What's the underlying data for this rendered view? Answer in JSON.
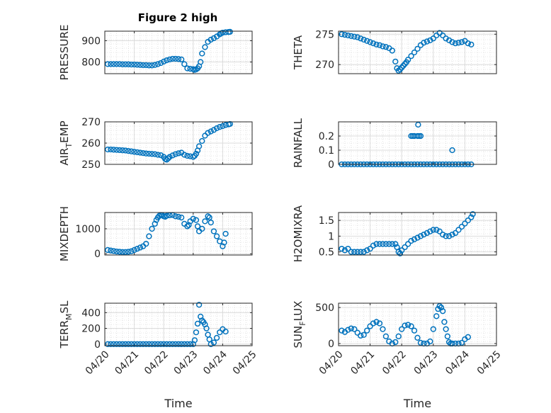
{
  "figure_title": "Figure 2 high",
  "chart_data": [
    {
      "type": "scatter",
      "ylabel": "PRESSURE",
      "ylim": [
        745,
        945
      ],
      "yticks": [
        "800",
        "900"
      ],
      "xlim": [
        0,
        5
      ],
      "xticks": [],
      "xlabel": "",
      "marker": "circle",
      "color": "#0072BD",
      "grid": true,
      "series": [
        {
          "x": [
            0.1,
            0.2,
            0.3,
            0.4,
            0.5,
            0.6,
            0.7,
            0.8,
            0.9,
            1.0,
            1.1,
            1.2,
            1.3,
            1.4,
            1.5,
            1.6,
            1.7,
            1.8,
            1.9,
            2.0,
            2.1,
            2.2,
            2.3,
            2.4,
            2.5,
            2.6,
            2.7,
            2.8,
            2.9,
            3.0,
            3.05,
            3.1,
            3.15,
            3.2,
            3.25,
            3.3,
            3.4,
            3.5,
            3.6,
            3.7,
            3.8,
            3.9,
            3.95,
            4.0,
            4.1,
            4.2,
            4.25
          ],
          "y": [
            790,
            790,
            790,
            790,
            790,
            789,
            789,
            789,
            788,
            788,
            787,
            786,
            785,
            785,
            784,
            784,
            786,
            790,
            795,
            802,
            808,
            812,
            815,
            815,
            814,
            812,
            790,
            770,
            768,
            766,
            763,
            765,
            770,
            780,
            800,
            840,
            870,
            895,
            905,
            912,
            920,
            930,
            935,
            938,
            940,
            941,
            942
          ]
        }
      ]
    },
    {
      "type": "scatter",
      "ylabel": "THETA",
      "ylim": [
        268.5,
        275.5
      ],
      "yticks": [
        "270",
        "275"
      ],
      "xlim": [
        0,
        5
      ],
      "xticks": [],
      "xlabel": "",
      "marker": "circle",
      "color": "#0072BD",
      "grid": true,
      "series": [
        {
          "x": [
            0.1,
            0.2,
            0.3,
            0.4,
            0.5,
            0.6,
            0.7,
            0.8,
            0.9,
            1.0,
            1.1,
            1.2,
            1.3,
            1.4,
            1.5,
            1.6,
            1.7,
            1.8,
            1.85,
            1.9,
            1.95,
            2.0,
            2.05,
            2.1,
            2.15,
            2.2,
            2.3,
            2.4,
            2.5,
            2.6,
            2.7,
            2.8,
            2.9,
            3.0,
            3.1,
            3.2,
            3.3,
            3.4,
            3.5,
            3.6,
            3.7,
            3.8,
            3.9,
            4.0,
            4.1,
            4.2
          ],
          "y": [
            275,
            274.9,
            274.8,
            274.7,
            274.6,
            274.5,
            274.3,
            274.1,
            273.9,
            273.7,
            273.5,
            273.3,
            273.2,
            273.0,
            272.9,
            272.7,
            272.3,
            270.5,
            269.4,
            269.0,
            269.2,
            269.5,
            269.8,
            270.1,
            270.4,
            270.8,
            271.4,
            272.0,
            272.6,
            273.2,
            273.6,
            273.8,
            274.0,
            274.3,
            274.8,
            275.2,
            274.8,
            274.3,
            274.0,
            273.7,
            273.5,
            273.6,
            273.7,
            273.9,
            273.5,
            273.3
          ]
        }
      ]
    },
    {
      "type": "scatter",
      "ylabel": "AIR_TEMP",
      "ylim": [
        250,
        270
      ],
      "yticks": [
        "250",
        "260",
        "270"
      ],
      "xlim": [
        0,
        5
      ],
      "xticks": [],
      "xlabel": "",
      "marker": "circle",
      "color": "#0072BD",
      "grid": true,
      "series": [
        {
          "x": [
            0.1,
            0.2,
            0.3,
            0.4,
            0.5,
            0.6,
            0.7,
            0.8,
            0.9,
            1.0,
            1.1,
            1.2,
            1.3,
            1.4,
            1.5,
            1.6,
            1.7,
            1.8,
            1.9,
            2.0,
            2.05,
            2.1,
            2.15,
            2.2,
            2.3,
            2.4,
            2.5,
            2.6,
            2.7,
            2.8,
            2.9,
            3.0,
            3.05,
            3.1,
            3.15,
            3.2,
            3.3,
            3.4,
            3.5,
            3.6,
            3.7,
            3.8,
            3.9,
            4.0,
            4.1,
            4.2,
            4.25
          ],
          "y": [
            257,
            257,
            256.9,
            256.8,
            256.7,
            256.6,
            256.5,
            256.3,
            256.1,
            255.9,
            255.7,
            255.5,
            255.3,
            255.1,
            255.0,
            254.9,
            254.8,
            254.5,
            254.3,
            253.5,
            252.5,
            252.2,
            252.8,
            253.5,
            254.2,
            254.8,
            255.2,
            255.5,
            254.5,
            254.0,
            253.8,
            253.5,
            254.0,
            255.0,
            256.5,
            258.5,
            261.0,
            263.5,
            264.8,
            265.5,
            266.2,
            267.0,
            267.6,
            268.0,
            268.5,
            268.8,
            269.0
          ]
        }
      ]
    },
    {
      "type": "scatter",
      "ylabel": "RAINFALL",
      "ylim": [
        0,
        0.3
      ],
      "yticks": [
        "0",
        "0.1",
        "0.2"
      ],
      "xlim": [
        0,
        5
      ],
      "xticks": [],
      "xlabel": "",
      "marker": "circle",
      "color": "#0072BD",
      "grid": true,
      "series": [
        {
          "x": [
            0.1,
            0.2,
            0.3,
            0.4,
            0.5,
            0.6,
            0.7,
            0.8,
            0.9,
            1.0,
            1.1,
            1.2,
            1.3,
            1.4,
            1.5,
            1.6,
            1.7,
            1.8,
            1.9,
            2.0,
            2.1,
            2.2,
            2.3,
            2.4,
            2.5,
            2.6,
            2.7,
            2.8,
            2.9,
            3.0,
            3.1,
            3.2,
            3.3,
            3.4,
            3.5,
            3.6,
            3.7,
            3.8,
            3.9,
            4.0,
            4.1,
            4.2,
            2.3,
            2.35,
            2.4,
            2.5,
            2.55,
            2.6,
            2.52,
            3.6
          ],
          "y": [
            0,
            0,
            0,
            0,
            0,
            0,
            0,
            0,
            0,
            0,
            0,
            0,
            0,
            0,
            0,
            0,
            0,
            0,
            0,
            0,
            0,
            0,
            0,
            0,
            0,
            0,
            0,
            0,
            0,
            0,
            0,
            0,
            0,
            0,
            0,
            0,
            0,
            0,
            0,
            0,
            0,
            0,
            0.2,
            0.2,
            0.2,
            0.2,
            0.2,
            0.2,
            0.28,
            0.1
          ]
        }
      ]
    },
    {
      "type": "scatter",
      "ylabel": "MIXDEPTH",
      "ylim": [
        -50,
        1650
      ],
      "yticks": [
        "0",
        "1000"
      ],
      "xlim": [
        0,
        5
      ],
      "xticks": [],
      "xlabel": "",
      "marker": "circle",
      "color": "#0072BD",
      "grid": true,
      "series": [
        {
          "x": [
            0.1,
            0.2,
            0.3,
            0.4,
            0.5,
            0.6,
            0.7,
            0.8,
            0.9,
            1.0,
            1.1,
            1.2,
            1.3,
            1.4,
            1.5,
            1.6,
            1.7,
            1.75,
            1.8,
            1.85,
            1.9,
            1.95,
            2.0,
            2.05,
            2.1,
            2.2,
            2.3,
            2.4,
            2.5,
            2.6,
            2.7,
            2.8,
            2.85,
            2.9,
            3.0,
            3.1,
            3.15,
            3.2,
            3.3,
            3.4,
            3.5,
            3.55,
            3.6,
            3.7,
            3.8,
            3.9,
            4.0,
            4.05,
            4.1
          ],
          "y": [
            150,
            130,
            110,
            90,
            80,
            70,
            70,
            80,
            100,
            150,
            200,
            250,
            300,
            400,
            700,
            1000,
            1200,
            1350,
            1450,
            1520,
            1550,
            1540,
            1500,
            1480,
            1520,
            1540,
            1550,
            1500,
            1480,
            1450,
            1200,
            1100,
            1150,
            1300,
            1400,
            1350,
            1100,
            900,
            1000,
            1300,
            1500,
            1450,
            1250,
            900,
            700,
            500,
            300,
            450,
            800
          ]
        }
      ]
    },
    {
      "type": "scatter",
      "ylabel": "H2OMIXRA",
      "ylim": [
        0.4,
        1.75
      ],
      "yticks": [
        "0.5",
        "1",
        "1.5"
      ],
      "xlim": [
        0,
        5
      ],
      "xticks": [],
      "xlabel": "",
      "marker": "circle",
      "color": "#0072BD",
      "grid": true,
      "series": [
        {
          "x": [
            0.1,
            0.2,
            0.3,
            0.4,
            0.5,
            0.6,
            0.7,
            0.8,
            0.9,
            1.0,
            1.1,
            1.2,
            1.3,
            1.4,
            1.5,
            1.6,
            1.7,
            1.8,
            1.85,
            1.9,
            1.95,
            2.0,
            2.1,
            2.2,
            2.3,
            2.4,
            2.5,
            2.6,
            2.7,
            2.8,
            2.9,
            3.0,
            3.1,
            3.2,
            3.3,
            3.4,
            3.5,
            3.6,
            3.7,
            3.8,
            3.9,
            4.0,
            4.1,
            4.2,
            4.25
          ],
          "y": [
            0.6,
            0.55,
            0.6,
            0.5,
            0.5,
            0.5,
            0.5,
            0.5,
            0.55,
            0.6,
            0.7,
            0.75,
            0.75,
            0.75,
            0.75,
            0.75,
            0.75,
            0.75,
            0.65,
            0.5,
            0.45,
            0.55,
            0.65,
            0.75,
            0.85,
            0.9,
            0.95,
            1.0,
            1.05,
            1.1,
            1.15,
            1.2,
            1.2,
            1.15,
            1.05,
            1.0,
            1.0,
            1.05,
            1.1,
            1.2,
            1.3,
            1.4,
            1.5,
            1.6,
            1.7
          ]
        }
      ]
    },
    {
      "type": "scatter",
      "ylabel": "TERR_MSL",
      "ylim": [
        -20,
        520
      ],
      "yticks": [
        "0",
        "200",
        "400"
      ],
      "xlim": [
        0,
        5
      ],
      "xticks": [
        "04/20",
        "04/21",
        "04/22",
        "04/23",
        "04/24",
        "04/25"
      ],
      "xlabel": "Time",
      "marker": "circle",
      "color": "#0072BD",
      "grid": true,
      "series": [
        {
          "x": [
            0.1,
            0.2,
            0.3,
            0.4,
            0.5,
            0.6,
            0.7,
            0.8,
            0.9,
            1.0,
            1.1,
            1.2,
            1.3,
            1.4,
            1.5,
            1.6,
            1.7,
            1.8,
            1.9,
            2.0,
            2.1,
            2.2,
            2.3,
            2.4,
            2.5,
            2.6,
            2.7,
            2.8,
            2.9,
            3.0,
            3.05,
            3.1,
            3.15,
            3.2,
            3.25,
            3.3,
            3.35,
            3.4,
            3.45,
            3.5,
            3.55,
            3.6,
            3.7,
            3.8,
            3.9,
            4.0,
            4.1
          ],
          "y": [
            0,
            0,
            0,
            0,
            0,
            0,
            0,
            0,
            0,
            0,
            0,
            0,
            0,
            0,
            0,
            0,
            0,
            0,
            0,
            0,
            0,
            0,
            0,
            0,
            0,
            0,
            0,
            0,
            0,
            0,
            50,
            150,
            260,
            500,
            350,
            300,
            280,
            250,
            200,
            120,
            60,
            0,
            20,
            80,
            150,
            190,
            160
          ]
        }
      ]
    },
    {
      "type": "scatter",
      "ylabel": "SUN_FLUX",
      "ylim": [
        -30,
        560
      ],
      "yticks": [
        "0",
        "500"
      ],
      "xlim": [
        0,
        5
      ],
      "xticks": [
        "04/20",
        "04/21",
        "04/22",
        "04/23",
        "04/24",
        "04/25"
      ],
      "xlabel": "Time",
      "marker": "circle",
      "color": "#0072BD",
      "grid": true,
      "series": [
        {
          "x": [
            0.1,
            0.2,
            0.3,
            0.4,
            0.5,
            0.6,
            0.7,
            0.8,
            0.9,
            1.0,
            1.1,
            1.2,
            1.3,
            1.4,
            1.5,
            1.6,
            1.7,
            1.8,
            1.9,
            2.0,
            2.1,
            2.2,
            2.3,
            2.4,
            2.5,
            2.6,
            2.7,
            2.8,
            2.9,
            3.0,
            3.1,
            3.15,
            3.2,
            3.25,
            3.3,
            3.35,
            3.4,
            3.45,
            3.5,
            3.55,
            3.6,
            3.7,
            3.8,
            3.9,
            4.0,
            4.1
          ],
          "y": [
            180,
            160,
            190,
            210,
            200,
            150,
            110,
            120,
            180,
            240,
            280,
            300,
            280,
            200,
            100,
            30,
            0,
            20,
            100,
            200,
            250,
            260,
            240,
            180,
            80,
            10,
            0,
            0,
            30,
            200,
            380,
            480,
            520,
            500,
            450,
            300,
            200,
            100,
            20,
            0,
            0,
            0,
            0,
            10,
            60,
            90
          ]
        }
      ]
    }
  ]
}
